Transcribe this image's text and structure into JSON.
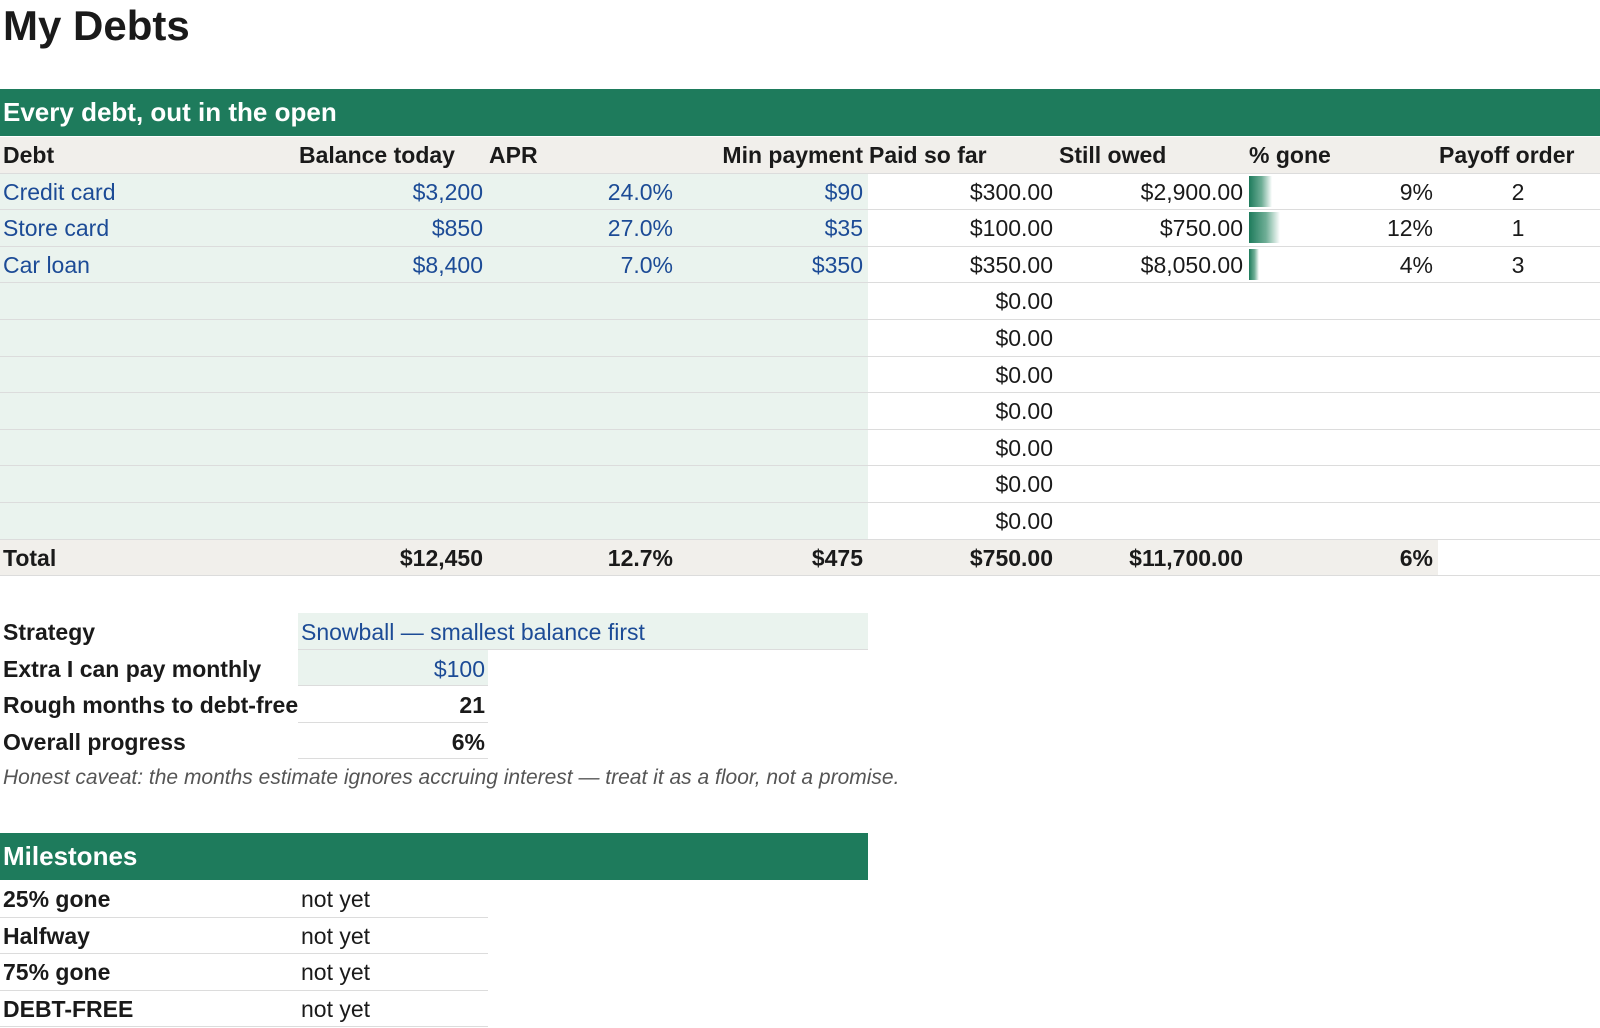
{
  "title": "My Debts",
  "section_main": "Every debt, out in the open",
  "headers": [
    "Debt",
    "Balance today",
    "APR",
    "Min payment",
    "Paid so far",
    "Still owed",
    "% gone",
    "Payoff order"
  ],
  "debts": [
    {
      "name": "Credit card",
      "balance": "$3,200",
      "apr": "24.0%",
      "min": "$90",
      "paid": "$300.00",
      "owed": "$2,900.00",
      "gone": "9%",
      "gone_value": 0.09,
      "order": "2"
    },
    {
      "name": "Store card",
      "balance": "$850",
      "apr": "27.0%",
      "min": "$35",
      "paid": "$100.00",
      "owed": "$750.00",
      "gone": "12%",
      "gone_value": 0.12,
      "order": "1"
    },
    {
      "name": "Car loan",
      "balance": "$8,400",
      "apr": "7.0%",
      "min": "$350",
      "paid": "$350.00",
      "owed": "$8,050.00",
      "gone": "4%",
      "gone_value": 0.04,
      "order": "3"
    }
  ],
  "empty_rows_paid": [
    "$0.00",
    "$0.00",
    "$0.00",
    "$0.00",
    "$0.00",
    "$0.00",
    "$0.00"
  ],
  "total": {
    "label": "Total",
    "balance": "$12,450",
    "apr": "12.7%",
    "min": "$475",
    "paid": "$750.00",
    "owed": "$11,700.00",
    "gone": "6%"
  },
  "summary": {
    "strategy_label": "Strategy",
    "strategy_value": "Snowball — smallest balance first",
    "extra_label": "Extra I can pay monthly",
    "extra_value": "$100",
    "months_label": "Rough months to debt-free",
    "months_value": "21",
    "progress_label": "Overall progress",
    "progress_value": "6%"
  },
  "caveat": "Honest caveat: the months estimate ignores accruing interest — treat it as a floor, not a promise.",
  "section_milestones": "Milestones",
  "milestones": [
    {
      "label": "25% gone",
      "status": "not yet"
    },
    {
      "label": "Halfway",
      "status": "not yet"
    },
    {
      "label": "75% gone",
      "status": "not yet"
    },
    {
      "label": "DEBT-FREE",
      "status": "not yet"
    }
  ],
  "colors": {
    "band": "#1e7b5c",
    "input_fill": "#eaf3ee",
    "input_text": "#1c4b96",
    "header_fill": "#f1efeb"
  }
}
